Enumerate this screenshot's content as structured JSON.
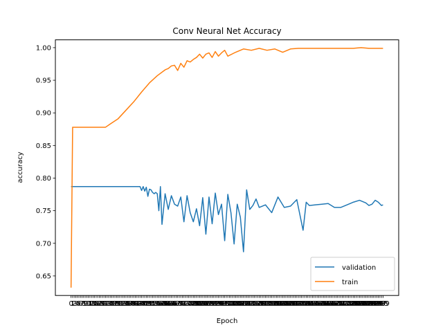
{
  "chart_data": {
    "type": "line",
    "title": "Conv Neural Net Accuracy",
    "xlabel": "Epoch",
    "ylabel": "accuracy",
    "ylim": [
      0.62,
      1.012
    ],
    "xlim": [
      -10,
      209
    ],
    "y_ticks": [
      "0.65",
      "0.70",
      "0.75",
      "0.80",
      "0.85",
      "0.90",
      "0.95",
      "1.00"
    ],
    "x_tick_note": "Every epoch is labeled 0–199; the labels overlap into an unreadable band.",
    "grid": false,
    "legend": "lower-right",
    "colors": {
      "validation": "#1f77b4",
      "train": "#ff7f0e"
    },
    "series": [
      {
        "name": "validation",
        "x": [
          0,
          1,
          10,
          20,
          30,
          40,
          44,
          45,
          46,
          47,
          48,
          49,
          50,
          51,
          52,
          53,
          54,
          55,
          56,
          57,
          58,
          60,
          62,
          64,
          66,
          68,
          70,
          72,
          74,
          76,
          78,
          80,
          82,
          84,
          86,
          88,
          90,
          92,
          94,
          96,
          98,
          100,
          102,
          104,
          106,
          108,
          110,
          112,
          114,
          116,
          118,
          120,
          124,
          128,
          132,
          136,
          140,
          144,
          148,
          150,
          152,
          156,
          160,
          164,
          168,
          172,
          176,
          180,
          184,
          188,
          190,
          192,
          194,
          196,
          198,
          199
        ],
        "y": [
          0.787,
          0.787,
          0.787,
          0.787,
          0.787,
          0.787,
          0.787,
          0.781,
          0.787,
          0.78,
          0.786,
          0.772,
          0.783,
          0.782,
          0.778,
          0.776,
          0.778,
          0.776,
          0.75,
          0.787,
          0.729,
          0.776,
          0.752,
          0.773,
          0.76,
          0.757,
          0.771,
          0.733,
          0.773,
          0.747,
          0.733,
          0.753,
          0.727,
          0.77,
          0.714,
          0.771,
          0.73,
          0.777,
          0.744,
          0.76,
          0.704,
          0.775,
          0.747,
          0.699,
          0.76,
          0.74,
          0.687,
          0.782,
          0.752,
          0.758,
          0.768,
          0.755,
          0.759,
          0.747,
          0.771,
          0.755,
          0.757,
          0.767,
          0.72,
          0.763,
          0.758,
          0.759,
          0.76,
          0.761,
          0.755,
          0.755,
          0.759,
          0.763,
          0.766,
          0.762,
          0.758,
          0.76,
          0.766,
          0.763,
          0.758,
          0.759
        ]
      },
      {
        "name": "train",
        "x": [
          0,
          1,
          5,
          10,
          15,
          20,
          22,
          25,
          30,
          35,
          40,
          45,
          50,
          55,
          60,
          62,
          64,
          66,
          68,
          70,
          72,
          74,
          76,
          78,
          80,
          82,
          84,
          86,
          88,
          90,
          92,
          94,
          96,
          98,
          100,
          105,
          110,
          115,
          120,
          125,
          130,
          135,
          140,
          145,
          150,
          155,
          160,
          165,
          170,
          175,
          180,
          185,
          190,
          195,
          199
        ],
        "y": [
          0.632,
          0.878,
          0.878,
          0.878,
          0.878,
          0.878,
          0.878,
          0.883,
          0.891,
          0.904,
          0.917,
          0.932,
          0.946,
          0.957,
          0.966,
          0.968,
          0.972,
          0.973,
          0.965,
          0.976,
          0.97,
          0.98,
          0.978,
          0.982,
          0.985,
          0.99,
          0.984,
          0.99,
          0.992,
          0.985,
          0.994,
          0.987,
          0.992,
          0.996,
          0.987,
          0.993,
          0.998,
          0.996,
          0.999,
          0.996,
          0.998,
          0.993,
          0.998,
          0.999,
          0.999,
          0.999,
          0.999,
          0.999,
          0.999,
          0.999,
          0.999,
          1.0,
          0.999,
          0.999,
          0.999
        ]
      }
    ]
  }
}
